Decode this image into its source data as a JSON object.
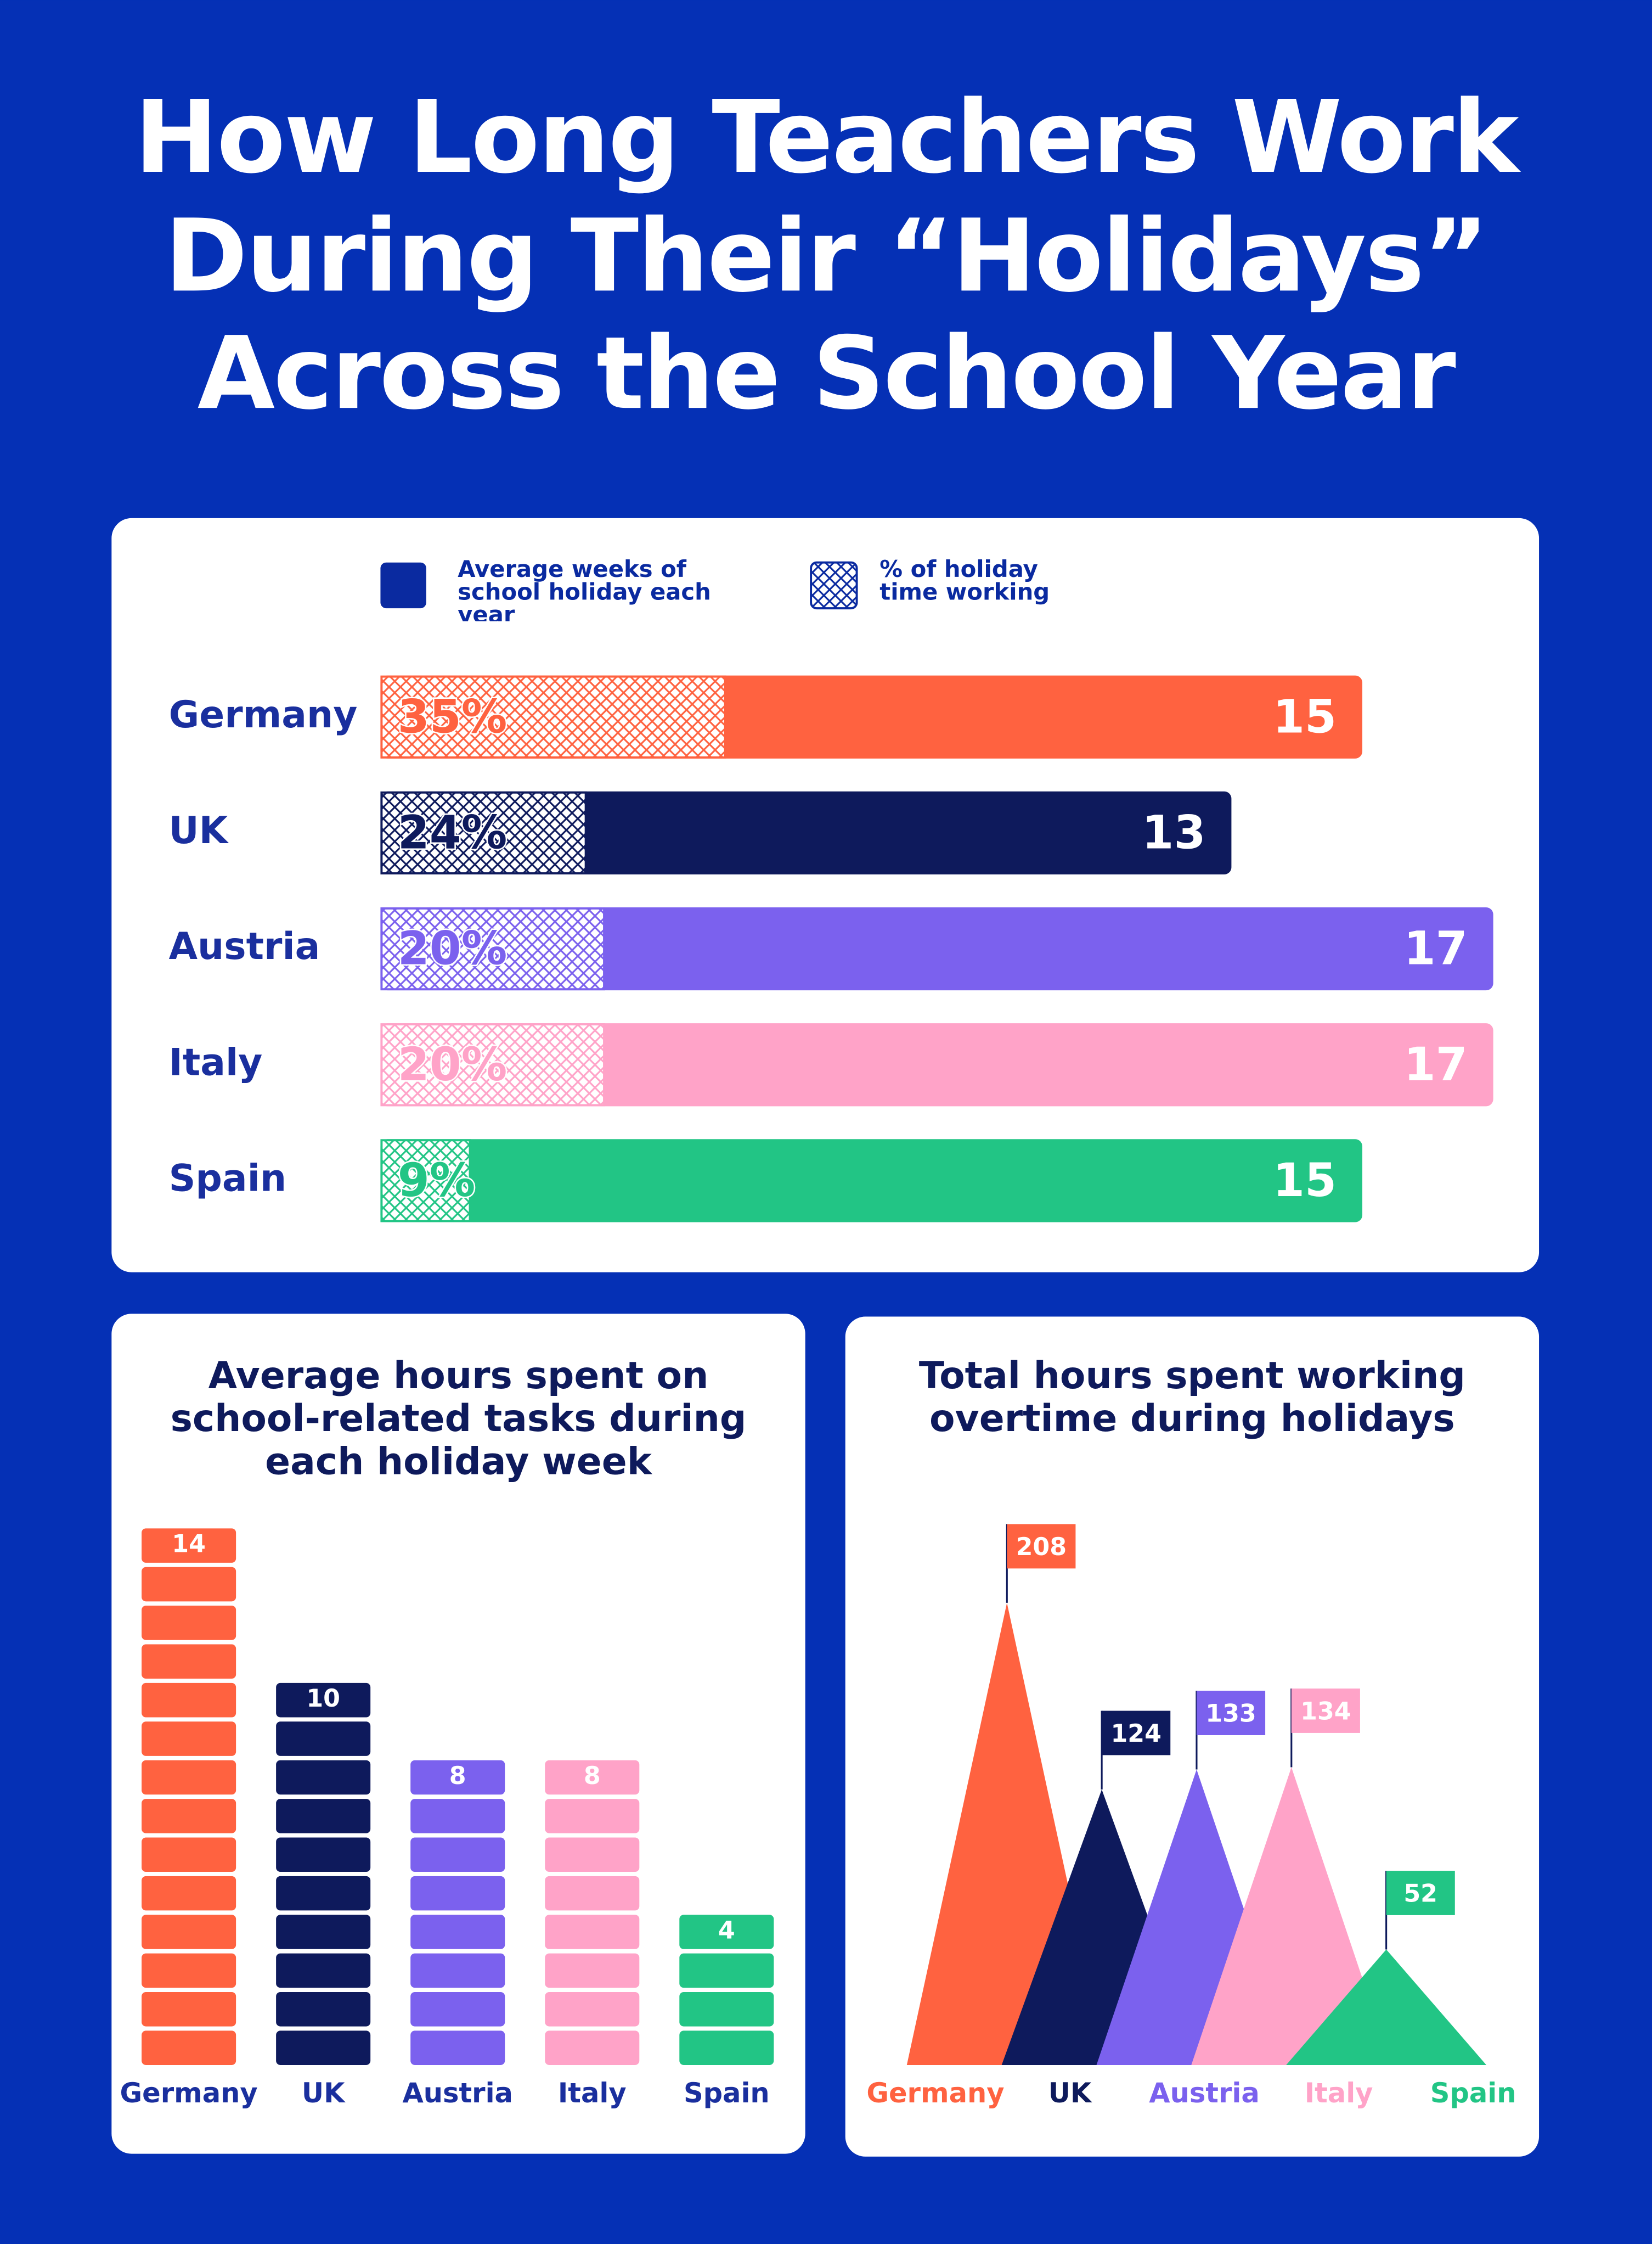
{
  "title": "How Long Teachers Work During Their “Holidays” Across the School Year",
  "chart_data": [
    {
      "type": "barh",
      "categories": [
        "Germany",
        "UK",
        "Austria",
        "Italy",
        "Spain"
      ],
      "colors": [
        "#ff6240",
        "#0e1a5c",
        "#7b61ee",
        "#ffa3c8",
        "#22c585"
      ],
      "series": [
        {
          "name": "Average weeks of school holiday each year",
          "color": "#0a2aa0",
          "values": [
            15,
            13,
            17,
            17,
            15
          ]
        },
        {
          "name": "% of holiday time working",
          "color": "#0a2aa0",
          "values": [
            35,
            24,
            20,
            20,
            9
          ],
          "value_labels": [
            "35%",
            "24%",
            "20%",
            "20%",
            "9%"
          ]
        }
      ]
    },
    {
      "type": "bar",
      "title": "Average hours spent on school-related tasks during each holiday week",
      "categories": [
        "Germany",
        "UK",
        "Austria",
        "Italy",
        "Spain"
      ],
      "colors": [
        "#ff6240",
        "#0e1a5c",
        "#7b61ee",
        "#ffa3c8",
        "#22c585"
      ],
      "values": [
        14,
        10,
        8,
        8,
        4
      ]
    },
    {
      "type": "triangle",
      "title": "Total hours spent working overtime during holidays",
      "categories": [
        "Germany",
        "UK",
        "Austria",
        "Italy",
        "Spain"
      ],
      "colors": [
        "#ff6240",
        "#0e1a5c",
        "#7b61ee",
        "#ffa3c8",
        "#22c585"
      ],
      "values": [
        208,
        124,
        133,
        134,
        52
      ]
    }
  ]
}
